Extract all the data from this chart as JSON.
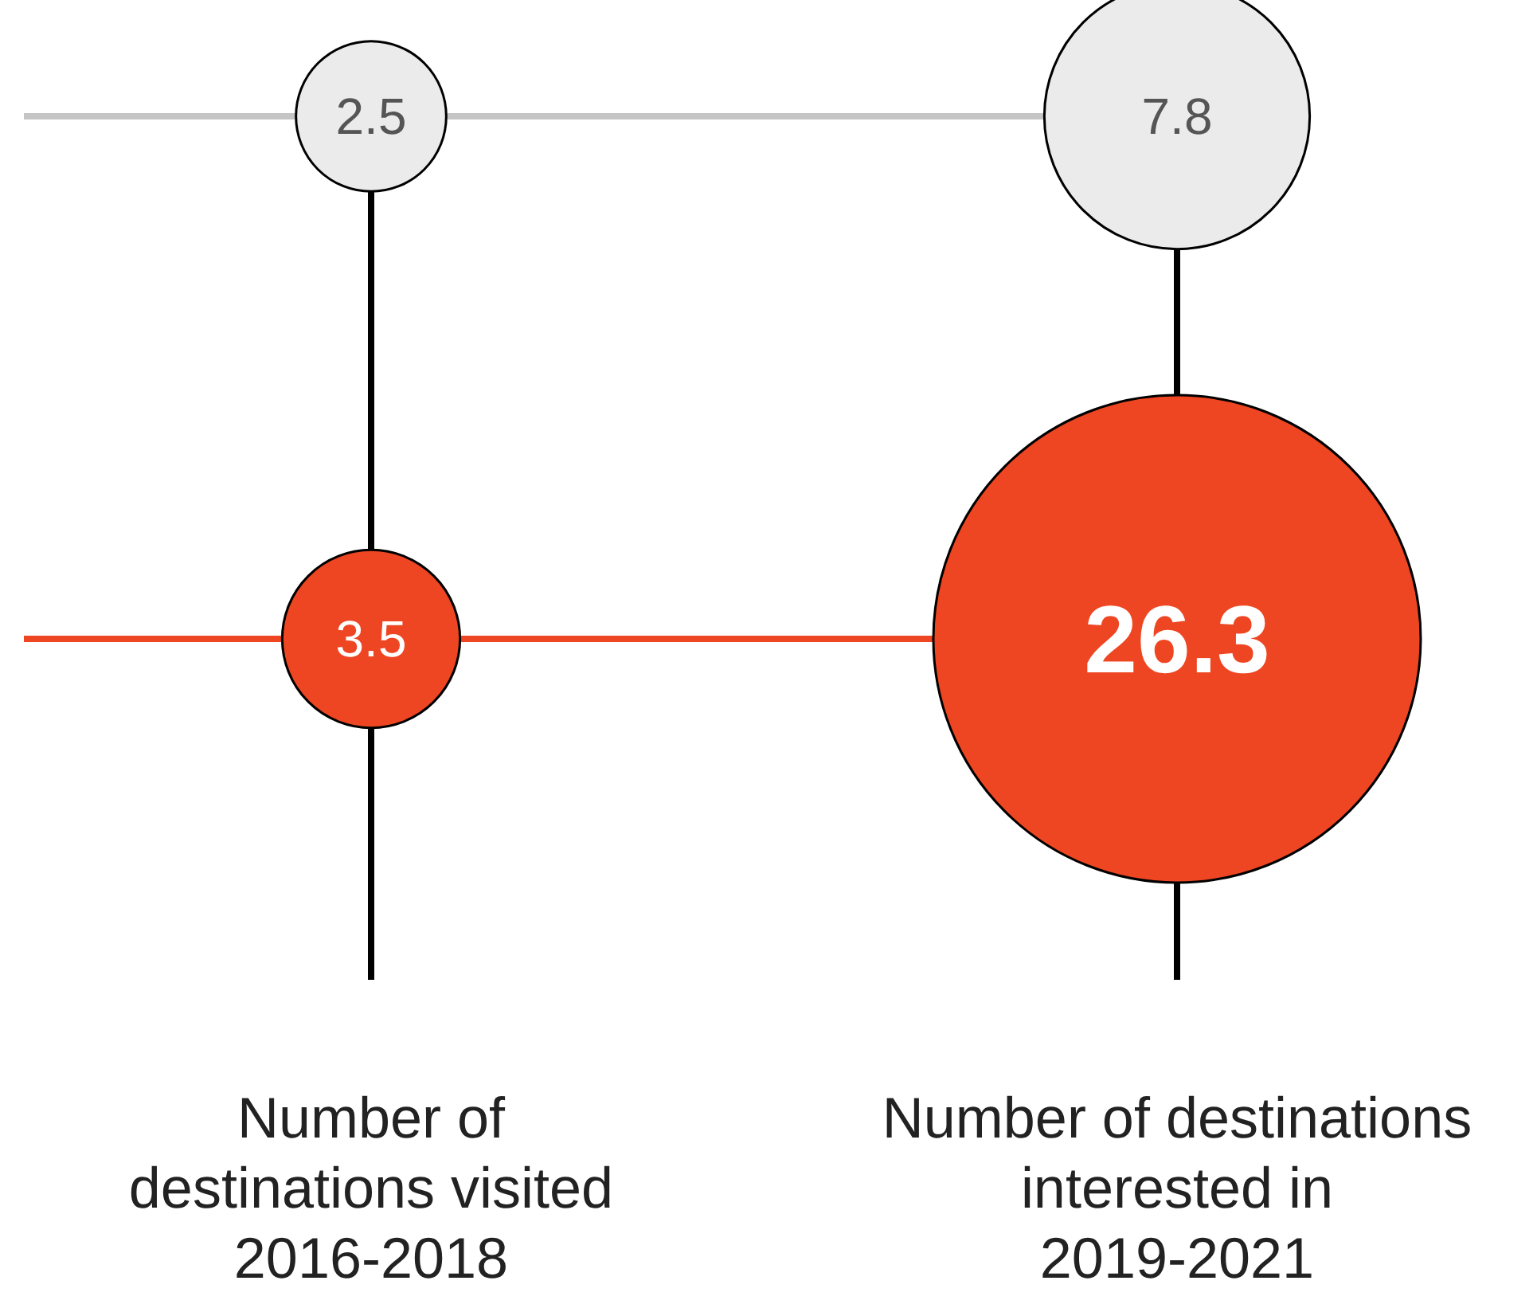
{
  "chart_data": {
    "type": "other",
    "categories": [
      "Number of\ndestinations visited\n2016-2018",
      "Number of destinations\ninterested in\n2019-2021"
    ],
    "series": [
      {
        "color": "#ebebeb",
        "values": [
          2.5,
          7.8
        ]
      },
      {
        "color": "#ee4622",
        "values": [
          3.5,
          26.3
        ]
      }
    ],
    "data_labels": true
  }
}
